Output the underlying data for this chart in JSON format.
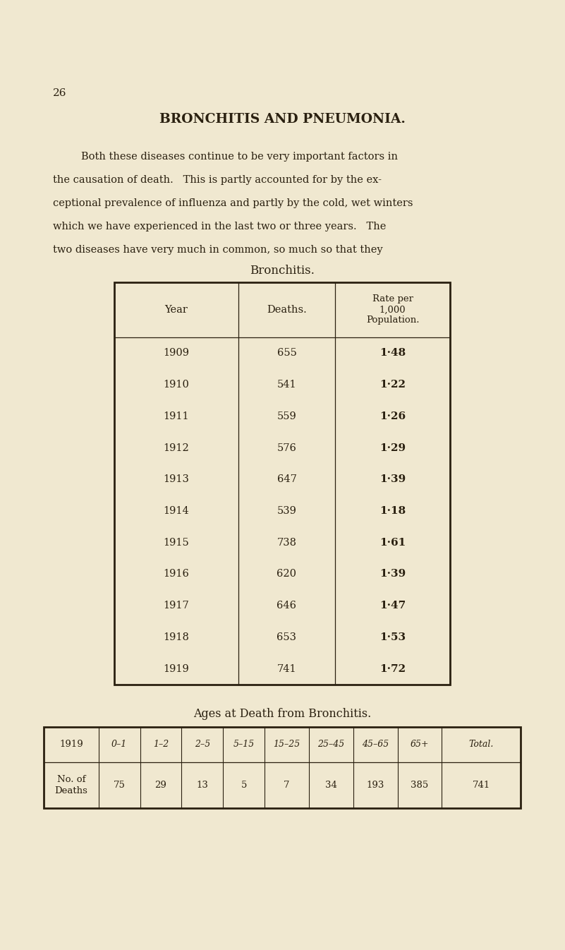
{
  "bg_color": "#f0e8d0",
  "text_color": "#2a2010",
  "page_number": "26",
  "title": "BRONCHITIS AND PNEUMONIA.",
  "body_text": [
    "Both these diseases continue to be very important factors in",
    "the causation of death.   This is partly accounted for by the ex-",
    "ceptional prevalence of influenza and partly by the cold, wet winters",
    "which we have experienced in the last two or three years.   The",
    "two diseases have very much in common, so much so that they"
  ],
  "table1_title": "Bronchitis.",
  "table1_col_headers": [
    "Year",
    "Deaths.",
    "Rate per\n1,000\nPopulation."
  ],
  "table1_rows": [
    [
      "1909",
      "655",
      "1·48"
    ],
    [
      "1910",
      "541",
      "1·22"
    ],
    [
      "1911",
      "559",
      "1·26"
    ],
    [
      "1912",
      "576",
      "1·29"
    ],
    [
      "1913",
      "647",
      "1·39"
    ],
    [
      "1914",
      "539",
      "1·18"
    ],
    [
      "1915",
      "738",
      "1·61"
    ],
    [
      "1916",
      "620",
      "1·39"
    ],
    [
      "1917",
      "646",
      "1·47"
    ],
    [
      "1918",
      "653",
      "1·53"
    ],
    [
      "1919",
      "741",
      "1·72"
    ]
  ],
  "table2_title": "Ages at Death from Bronchitis.",
  "table2_header_row": [
    "1919",
    "0–1",
    "1–2",
    "2–5",
    "5–15",
    "15–25",
    "25–45",
    "45–65",
    "65+",
    "Total."
  ],
  "table2_data_row": [
    "No. of\nDeaths",
    "75",
    "29",
    "13",
    "5",
    "7",
    "34",
    "193",
    "385",
    "741"
  ],
  "figw": 8.01,
  "figh": 13.46,
  "dpi": 100
}
